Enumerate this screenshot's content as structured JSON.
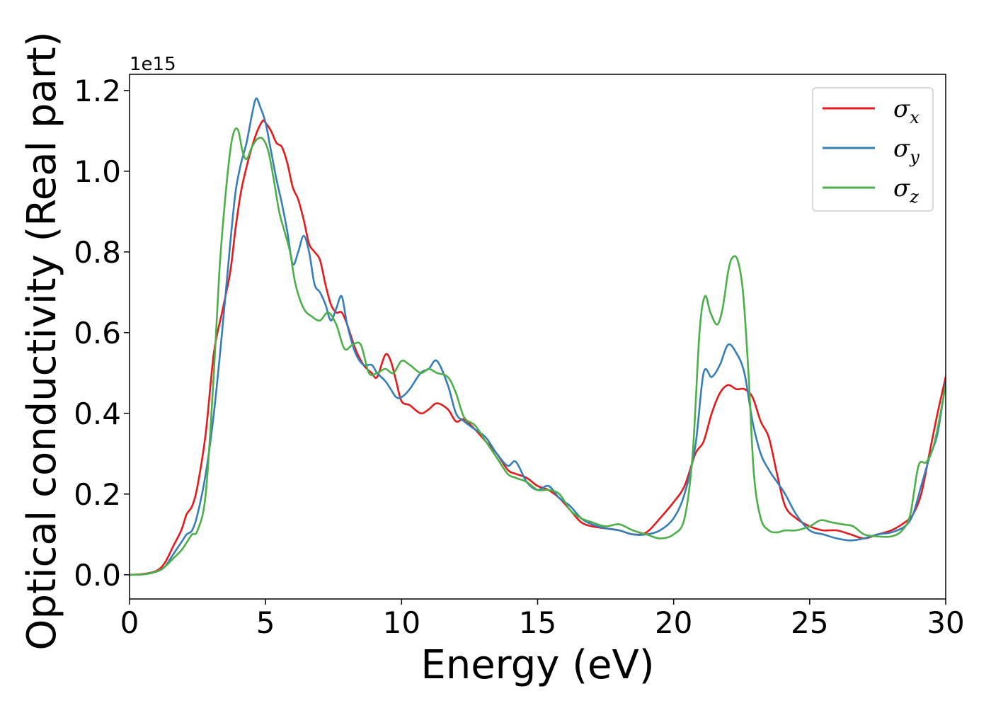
{
  "chart_data": {
    "type": "line",
    "title": "",
    "xlabel": "Energy (eV)",
    "ylabel": "Optical conductivity (Real part)",
    "y_offset_label": "1e15",
    "xlim": [
      0,
      30
    ],
    "ylim": [
      -0.06,
      1.24
    ],
    "xticks": [
      0,
      5,
      10,
      15,
      20,
      25,
      30
    ],
    "xtick_labels": [
      "0",
      "5",
      "10",
      "15",
      "20",
      "25",
      "30"
    ],
    "yticks": [
      0.0,
      0.2,
      0.4,
      0.6,
      0.8,
      1.0,
      1.2
    ],
    "ytick_labels": [
      "0.0",
      "0.2",
      "0.4",
      "0.6",
      "0.8",
      "1.0",
      "1.2"
    ],
    "grid": false,
    "legend_position": "top-right",
    "series": [
      {
        "name": "σx",
        "legend_base": "σ",
        "legend_sub": "x",
        "color": "#e41a1c",
        "x": [
          0,
          0.5,
          1.0,
          1.3,
          1.6,
          1.9,
          2.1,
          2.3,
          2.5,
          2.8,
          3.1,
          3.4,
          3.7,
          3.9,
          4.1,
          4.3,
          4.5,
          4.7,
          4.9,
          5.0,
          5.2,
          5.4,
          5.6,
          5.8,
          6.0,
          6.2,
          6.4,
          6.6,
          6.8,
          7.0,
          7.2,
          7.4,
          7.6,
          7.8,
          8.0,
          8.3,
          8.6,
          8.9,
          9.1,
          9.4,
          9.6,
          9.8,
          10.0,
          10.3,
          10.7,
          11.0,
          11.3,
          11.7,
          12.0,
          12.3,
          12.7,
          13.1,
          13.5,
          13.9,
          14.2,
          14.6,
          15.0,
          15.4,
          15.8,
          16.2,
          16.6,
          17.0,
          17.5,
          18.0,
          18.5,
          19.0,
          19.5,
          20.0,
          20.4,
          20.8,
          21.1,
          21.4,
          21.7,
          22.0,
          22.3,
          22.6,
          22.9,
          23.2,
          23.5,
          23.8,
          24.1,
          24.5,
          25.0,
          25.5,
          26.0,
          26.5,
          27.0,
          27.5,
          28.0,
          28.5,
          28.8,
          29.1,
          29.4,
          29.7,
          30.0
        ],
        "values": [
          0.0,
          0.002,
          0.01,
          0.03,
          0.07,
          0.11,
          0.15,
          0.17,
          0.22,
          0.35,
          0.55,
          0.65,
          0.75,
          0.86,
          0.95,
          1.01,
          1.06,
          1.1,
          1.125,
          1.12,
          1.1,
          1.07,
          1.06,
          1.02,
          0.96,
          0.93,
          0.88,
          0.82,
          0.8,
          0.78,
          0.72,
          0.67,
          0.65,
          0.65,
          0.62,
          0.56,
          0.52,
          0.5,
          0.49,
          0.545,
          0.53,
          0.48,
          0.43,
          0.42,
          0.4,
          0.41,
          0.425,
          0.41,
          0.38,
          0.385,
          0.36,
          0.33,
          0.3,
          0.26,
          0.25,
          0.24,
          0.22,
          0.21,
          0.19,
          0.16,
          0.13,
          0.12,
          0.115,
          0.11,
          0.1,
          0.105,
          0.14,
          0.18,
          0.22,
          0.3,
          0.33,
          0.4,
          0.45,
          0.47,
          0.46,
          0.46,
          0.44,
          0.38,
          0.34,
          0.25,
          0.17,
          0.14,
          0.12,
          0.11,
          0.11,
          0.1,
          0.09,
          0.1,
          0.11,
          0.13,
          0.15,
          0.2,
          0.3,
          0.4,
          0.49
        ]
      },
      {
        "name": "σy",
        "legend_base": "σ",
        "legend_sub": "y",
        "color": "#377eb8",
        "x": [
          0,
          0.5,
          1.0,
          1.3,
          1.6,
          1.9,
          2.1,
          2.3,
          2.5,
          2.8,
          3.1,
          3.4,
          3.7,
          3.9,
          4.1,
          4.3,
          4.5,
          4.65,
          4.8,
          5.0,
          5.2,
          5.4,
          5.6,
          5.8,
          6.0,
          6.2,
          6.4,
          6.6,
          6.8,
          7.0,
          7.2,
          7.4,
          7.6,
          7.8,
          8.0,
          8.3,
          8.6,
          8.9,
          9.1,
          9.4,
          9.6,
          9.8,
          10.0,
          10.3,
          10.7,
          11.0,
          11.3,
          11.7,
          12.0,
          12.3,
          12.7,
          13.1,
          13.5,
          13.9,
          14.2,
          14.6,
          15.0,
          15.4,
          15.8,
          16.2,
          16.6,
          17.0,
          17.5,
          18.0,
          18.5,
          19.0,
          19.5,
          20.0,
          20.4,
          20.8,
          21.1,
          21.4,
          21.7,
          22.0,
          22.3,
          22.6,
          22.9,
          23.2,
          23.5,
          23.8,
          24.1,
          24.5,
          25.0,
          25.5,
          26.0,
          26.5,
          27.0,
          27.5,
          28.0,
          28.5,
          28.8,
          29.1,
          29.4,
          29.7,
          30.0
        ],
        "values": [
          0.0,
          0.001,
          0.008,
          0.02,
          0.05,
          0.08,
          0.1,
          0.11,
          0.15,
          0.25,
          0.4,
          0.6,
          0.82,
          0.95,
          1.02,
          1.07,
          1.14,
          1.18,
          1.16,
          1.12,
          1.05,
          0.98,
          0.92,
          0.85,
          0.77,
          0.8,
          0.84,
          0.8,
          0.72,
          0.7,
          0.67,
          0.63,
          0.66,
          0.69,
          0.62,
          0.55,
          0.52,
          0.52,
          0.5,
          0.48,
          0.46,
          0.44,
          0.44,
          0.46,
          0.5,
          0.51,
          0.53,
          0.47,
          0.4,
          0.38,
          0.36,
          0.34,
          0.3,
          0.27,
          0.28,
          0.23,
          0.21,
          0.22,
          0.19,
          0.17,
          0.14,
          0.125,
          0.115,
          0.11,
          0.1,
          0.1,
          0.11,
          0.14,
          0.2,
          0.32,
          0.5,
          0.49,
          0.52,
          0.57,
          0.55,
          0.5,
          0.38,
          0.3,
          0.26,
          0.23,
          0.2,
          0.15,
          0.11,
          0.1,
          0.09,
          0.085,
          0.09,
          0.1,
          0.105,
          0.12,
          0.15,
          0.22,
          0.29,
          0.35,
          0.48
        ]
      },
      {
        "name": "σz",
        "legend_base": "σ",
        "legend_sub": "z",
        "color": "#4daf4a",
        "x": [
          0,
          0.5,
          1.0,
          1.3,
          1.6,
          1.9,
          2.1,
          2.3,
          2.5,
          2.8,
          3.1,
          3.3,
          3.5,
          3.7,
          3.85,
          4.0,
          4.15,
          4.3,
          4.5,
          4.7,
          4.9,
          5.1,
          5.3,
          5.5,
          5.7,
          5.9,
          6.1,
          6.4,
          6.7,
          7.0,
          7.3,
          7.6,
          7.9,
          8.2,
          8.5,
          8.8,
          9.1,
          9.4,
          9.7,
          10.0,
          10.3,
          10.7,
          11.0,
          11.3,
          11.7,
          12.0,
          12.3,
          12.7,
          13.1,
          13.5,
          13.9,
          14.2,
          14.6,
          15.0,
          15.4,
          15.8,
          16.2,
          16.6,
          17.0,
          17.5,
          18.0,
          18.5,
          19.0,
          19.5,
          20.0,
          20.4,
          20.7,
          20.95,
          21.15,
          21.35,
          21.6,
          21.8,
          22.0,
          22.15,
          22.35,
          22.55,
          22.75,
          22.95,
          23.2,
          23.5,
          23.8,
          24.1,
          24.5,
          25.0,
          25.4,
          25.8,
          26.2,
          26.6,
          27.0,
          27.5,
          28.0,
          28.4,
          28.7,
          29.0,
          29.3,
          29.6,
          30.0
        ],
        "values": [
          0.0,
          0.001,
          0.008,
          0.02,
          0.04,
          0.06,
          0.08,
          0.1,
          0.11,
          0.2,
          0.5,
          0.75,
          0.92,
          1.05,
          1.1,
          1.1,
          1.05,
          1.03,
          1.06,
          1.08,
          1.08,
          1.05,
          0.98,
          0.9,
          0.85,
          0.8,
          0.72,
          0.66,
          0.64,
          0.63,
          0.65,
          0.62,
          0.56,
          0.57,
          0.57,
          0.5,
          0.5,
          0.51,
          0.5,
          0.53,
          0.52,
          0.5,
          0.51,
          0.5,
          0.49,
          0.45,
          0.39,
          0.37,
          0.33,
          0.29,
          0.25,
          0.24,
          0.23,
          0.21,
          0.21,
          0.2,
          0.16,
          0.14,
          0.13,
          0.12,
          0.125,
          0.11,
          0.1,
          0.09,
          0.1,
          0.14,
          0.3,
          0.6,
          0.69,
          0.65,
          0.62,
          0.66,
          0.75,
          0.785,
          0.78,
          0.7,
          0.5,
          0.25,
          0.14,
          0.11,
          0.105,
          0.11,
          0.11,
          0.12,
          0.135,
          0.13,
          0.125,
          0.12,
          0.1,
          0.095,
          0.095,
          0.11,
          0.15,
          0.27,
          0.28,
          0.33,
          0.47
        ]
      }
    ]
  }
}
